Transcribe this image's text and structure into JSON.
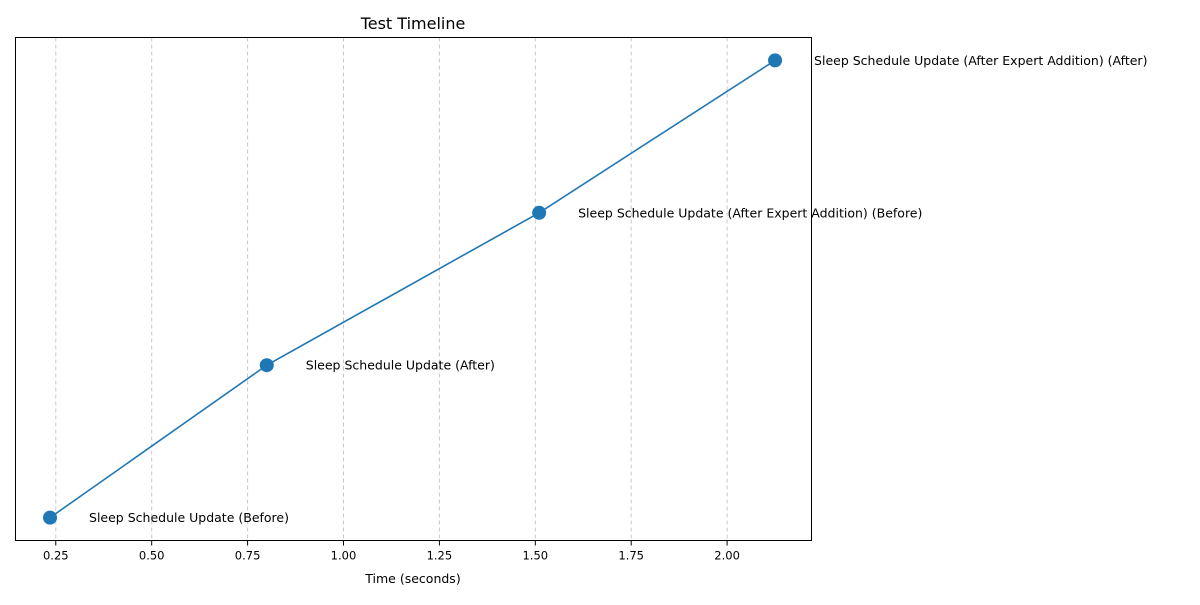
{
  "chart_data": {
    "type": "line",
    "title": "Test Timeline",
    "xlabel": "Time (seconds)",
    "ylabel": "",
    "xlim": [
      0.145,
      2.22
    ],
    "ylim": [
      -0.15,
      3.15
    ],
    "x_ticks": [
      0.25,
      0.5,
      0.75,
      1.0,
      1.25,
      1.5,
      1.75,
      2.0
    ],
    "x_tick_labels": [
      "0.25",
      "0.50",
      "0.75",
      "1.00",
      "1.25",
      "1.50",
      "1.75",
      "2.00"
    ],
    "grid": "x-axis vertical dashed lines",
    "legend": "none",
    "series": [
      {
        "x": [
          0.235,
          0.8,
          1.51,
          2.125
        ],
        "y": [
          0,
          1,
          2,
          3
        ],
        "color": "#1f77b4",
        "marker": "circle"
      }
    ],
    "annotations": [
      "Sleep Schedule Update (Before)",
      "Sleep Schedule Update (After)",
      "Sleep Schedule Update (After Expert Addition) (Before)",
      "Sleep Schedule Update (After Expert Addition) (After)"
    ]
  }
}
